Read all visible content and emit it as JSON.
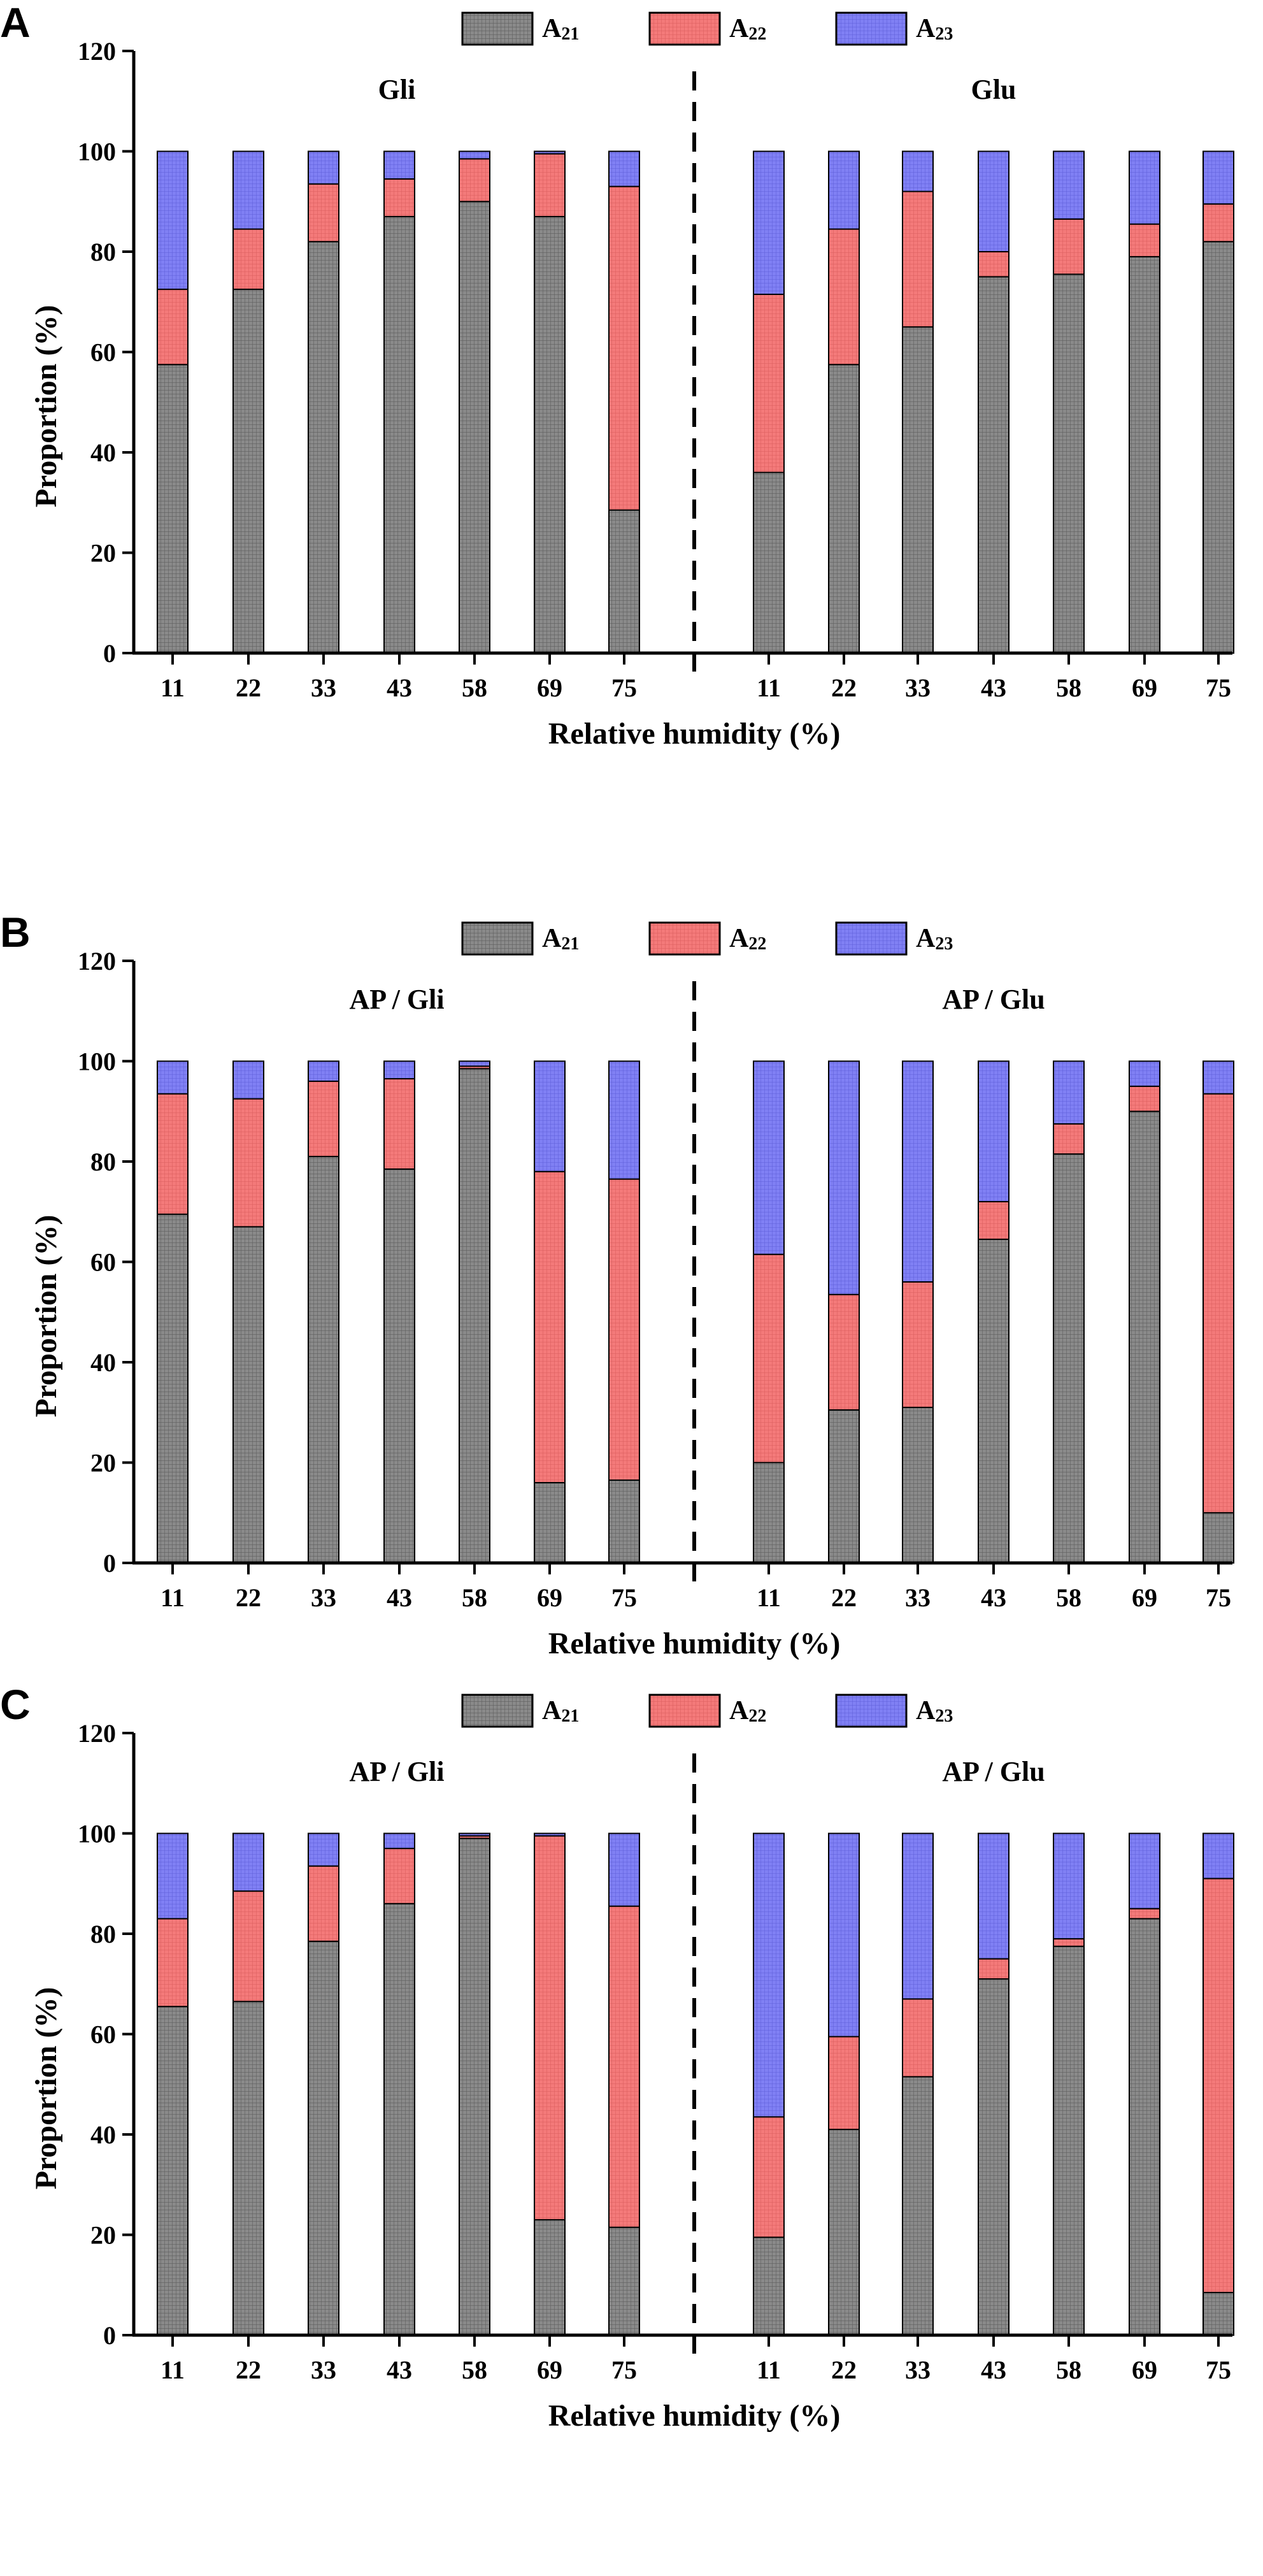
{
  "chart_data": [
    {
      "type": "bar",
      "stacked": true,
      "panel": "A",
      "left_label": "Gli",
      "right_label": "Glu",
      "categories": [
        "11",
        "22",
        "33",
        "43",
        "58",
        "69",
        "75",
        "11",
        "22",
        "33",
        "43",
        "58",
        "69",
        "75"
      ],
      "series": [
        {
          "name": "A21",
          "label": "A",
          "sub": "21",
          "values": [
            57.5,
            72.5,
            82.0,
            87.0,
            90.0,
            87.0,
            28.5,
            36.0,
            57.5,
            65.0,
            75.0,
            75.5,
            79.0,
            82.0
          ]
        },
        {
          "name": "A22",
          "label": "A",
          "sub": "22",
          "values": [
            15.0,
            12.0,
            11.5,
            7.5,
            8.5,
            12.5,
            64.5,
            35.5,
            27.0,
            27.0,
            5.0,
            11.0,
            6.5,
            7.5
          ]
        },
        {
          "name": "A23",
          "label": "A",
          "sub": "23",
          "values": [
            27.5,
            15.5,
            6.5,
            5.5,
            1.5,
            0.5,
            7.0,
            28.5,
            15.5,
            8.0,
            20.0,
            13.5,
            14.5,
            10.5
          ]
        }
      ],
      "xlabel": "Relative humidity (%)",
      "ylabel": "Proportion (%)",
      "ylim": [
        0,
        120
      ],
      "yticks": [
        "0",
        "20",
        "40",
        "60",
        "80",
        "100",
        "120"
      ]
    },
    {
      "type": "bar",
      "stacked": true,
      "panel": "B",
      "left_label": "AP / Gli",
      "right_label": "AP / Glu",
      "categories": [
        "11",
        "22",
        "33",
        "43",
        "58",
        "69",
        "75",
        "11",
        "22",
        "33",
        "43",
        "58",
        "69",
        "75"
      ],
      "series": [
        {
          "name": "A21",
          "label": "A",
          "sub": "21",
          "values": [
            69.5,
            67.0,
            81.0,
            78.5,
            98.5,
            16.0,
            16.5,
            20.0,
            30.5,
            31.0,
            64.5,
            81.5,
            90.0,
            10.0
          ]
        },
        {
          "name": "A22",
          "label": "A",
          "sub": "22",
          "values": [
            24.0,
            25.5,
            15.0,
            18.0,
            0.5,
            62.0,
            60.0,
            41.5,
            23.0,
            25.0,
            7.5,
            6.0,
            5.0,
            83.5
          ]
        },
        {
          "name": "A23",
          "label": "A",
          "sub": "23",
          "values": [
            6.5,
            7.5,
            4.0,
            3.5,
            1.0,
            22.0,
            23.5,
            38.5,
            46.5,
            44.0,
            28.0,
            12.5,
            5.0,
            6.5
          ]
        }
      ],
      "xlabel": "Relative humidity (%)",
      "ylabel": "Proportion (%)",
      "ylim": [
        0,
        120
      ],
      "yticks": [
        "0",
        "20",
        "40",
        "60",
        "80",
        "100",
        "120"
      ]
    },
    {
      "type": "bar",
      "stacked": true,
      "panel": "C",
      "left_label": "AP / Gli",
      "right_label": "AP / Glu",
      "categories": [
        "11",
        "22",
        "33",
        "43",
        "58",
        "69",
        "75",
        "11",
        "22",
        "33",
        "43",
        "58",
        "69",
        "75"
      ],
      "series": [
        {
          "name": "A21",
          "label": "A",
          "sub": "21",
          "values": [
            65.5,
            66.5,
            78.5,
            86.0,
            99.0,
            23.0,
            21.5,
            19.5,
            41.0,
            51.5,
            71.0,
            77.5,
            83.0,
            8.5
          ]
        },
        {
          "name": "A22",
          "label": "A",
          "sub": "22",
          "values": [
            17.5,
            22.0,
            15.0,
            11.0,
            0.5,
            76.5,
            64.0,
            24.0,
            18.5,
            15.5,
            4.0,
            1.5,
            2.0,
            82.5
          ]
        },
        {
          "name": "A23",
          "label": "A",
          "sub": "23",
          "values": [
            17.0,
            11.5,
            6.5,
            3.0,
            0.5,
            0.5,
            14.5,
            56.5,
            40.5,
            33.0,
            25.0,
            21.0,
            15.0,
            9.0
          ]
        }
      ],
      "xlabel": "Relative humidity (%)",
      "ylabel": "Proportion (%)",
      "ylim": [
        0,
        120
      ],
      "yticks": [
        "0",
        "20",
        "40",
        "60",
        "80",
        "100",
        "120"
      ]
    }
  ],
  "colors": {
    "A21": "#7a7a7a",
    "A22": "#f07070",
    "A23": "#7878f2",
    "axis": "#000000"
  }
}
